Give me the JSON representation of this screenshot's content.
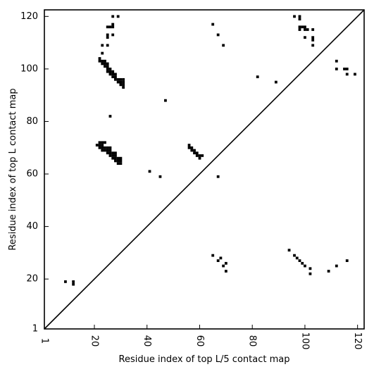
{
  "chart_data": {
    "type": "scatter",
    "title": "",
    "xlabel": "Residue index of top L/5 contact map",
    "ylabel": "Residue index of top L contact map",
    "xlim": [
      1,
      122.5
    ],
    "ylim": [
      1,
      122.5
    ],
    "xticks": [
      1,
      20,
      40,
      60,
      80,
      100,
      120
    ],
    "yticks": [
      1,
      20,
      40,
      60,
      80,
      100,
      120
    ],
    "grid": false,
    "legend": "none",
    "marker_color": "#000000",
    "diagonal": [
      [
        1,
        1
      ],
      [
        122.5,
        122.5
      ]
    ],
    "series": [
      {
        "name": "",
        "points": [
          [
            9,
            19
          ],
          [
            12,
            18
          ],
          [
            12,
            19
          ],
          [
            21,
            71
          ],
          [
            22,
            70
          ],
          [
            22,
            71
          ],
          [
            22,
            72
          ],
          [
            23,
            69
          ],
          [
            23,
            70
          ],
          [
            23,
            71
          ],
          [
            23,
            72
          ],
          [
            24,
            69
          ],
          [
            24,
            70
          ],
          [
            24,
            72
          ],
          [
            25,
            68
          ],
          [
            25,
            69
          ],
          [
            25,
            70
          ],
          [
            26,
            67
          ],
          [
            26,
            68
          ],
          [
            26,
            69
          ],
          [
            26,
            70
          ],
          [
            27,
            66
          ],
          [
            27,
            67
          ],
          [
            27,
            68
          ],
          [
            28,
            65
          ],
          [
            28,
            66
          ],
          [
            28,
            67
          ],
          [
            28,
            68
          ],
          [
            29,
            64
          ],
          [
            29,
            65
          ],
          [
            29,
            66
          ],
          [
            30,
            64
          ],
          [
            30,
            65
          ],
          [
            30,
            66
          ],
          [
            22,
            103
          ],
          [
            22,
            104
          ],
          [
            23,
            102
          ],
          [
            23,
            103
          ],
          [
            24,
            101
          ],
          [
            24,
            102
          ],
          [
            24,
            103
          ],
          [
            25,
            99
          ],
          [
            25,
            100
          ],
          [
            25,
            101
          ],
          [
            25,
            102
          ],
          [
            26,
            98
          ],
          [
            26,
            99
          ],
          [
            26,
            100
          ],
          [
            27,
            97
          ],
          [
            27,
            98
          ],
          [
            27,
            99
          ],
          [
            28,
            96
          ],
          [
            28,
            97
          ],
          [
            28,
            98
          ],
          [
            29,
            95
          ],
          [
            29,
            96
          ],
          [
            30,
            94
          ],
          [
            30,
            95
          ],
          [
            30,
            96
          ],
          [
            31,
            93
          ],
          [
            31,
            94
          ],
          [
            31,
            95
          ],
          [
            31,
            96
          ],
          [
            23,
            106
          ],
          [
            23,
            109
          ],
          [
            25,
            109
          ],
          [
            25,
            112
          ],
          [
            25,
            113
          ],
          [
            25,
            116
          ],
          [
            26,
            116
          ],
          [
            27,
            113
          ],
          [
            27,
            116
          ],
          [
            27,
            117
          ],
          [
            27,
            120
          ],
          [
            29,
            120
          ],
          [
            26,
            82
          ],
          [
            41,
            61
          ],
          [
            45,
            59
          ],
          [
            47,
            88
          ],
          [
            56,
            70
          ],
          [
            56,
            71
          ],
          [
            57,
            69
          ],
          [
            57,
            70
          ],
          [
            58,
            68
          ],
          [
            58,
            69
          ],
          [
            59,
            67
          ],
          [
            59,
            68
          ],
          [
            60,
            66
          ],
          [
            60,
            67
          ],
          [
            61,
            67
          ],
          [
            65,
            117
          ],
          [
            67,
            113
          ],
          [
            69,
            109
          ],
          [
            67,
            59
          ],
          [
            82,
            97
          ],
          [
            89,
            95
          ],
          [
            65,
            29
          ],
          [
            67,
            27
          ],
          [
            68,
            28
          ],
          [
            69,
            25
          ],
          [
            70,
            23
          ],
          [
            70,
            26
          ],
          [
            94,
            31
          ],
          [
            96,
            29
          ],
          [
            97,
            28
          ],
          [
            98,
            27
          ],
          [
            99,
            26
          ],
          [
            100,
            25
          ],
          [
            102,
            24
          ],
          [
            102,
            22
          ],
          [
            109,
            23
          ],
          [
            112,
            25
          ],
          [
            116,
            27
          ],
          [
            96,
            120
          ],
          [
            98,
            119
          ],
          [
            98,
            120
          ],
          [
            98,
            116
          ],
          [
            98,
            115
          ],
          [
            99,
            116
          ],
          [
            100,
            116
          ],
          [
            100,
            115
          ],
          [
            101,
            115
          ],
          [
            103,
            115
          ],
          [
            100,
            112
          ],
          [
            103,
            112
          ],
          [
            103,
            111
          ],
          [
            103,
            109
          ],
          [
            112,
            103
          ],
          [
            112,
            100
          ],
          [
            115,
            100
          ],
          [
            116,
            100
          ],
          [
            116,
            98
          ],
          [
            119,
            98
          ]
        ]
      }
    ]
  }
}
